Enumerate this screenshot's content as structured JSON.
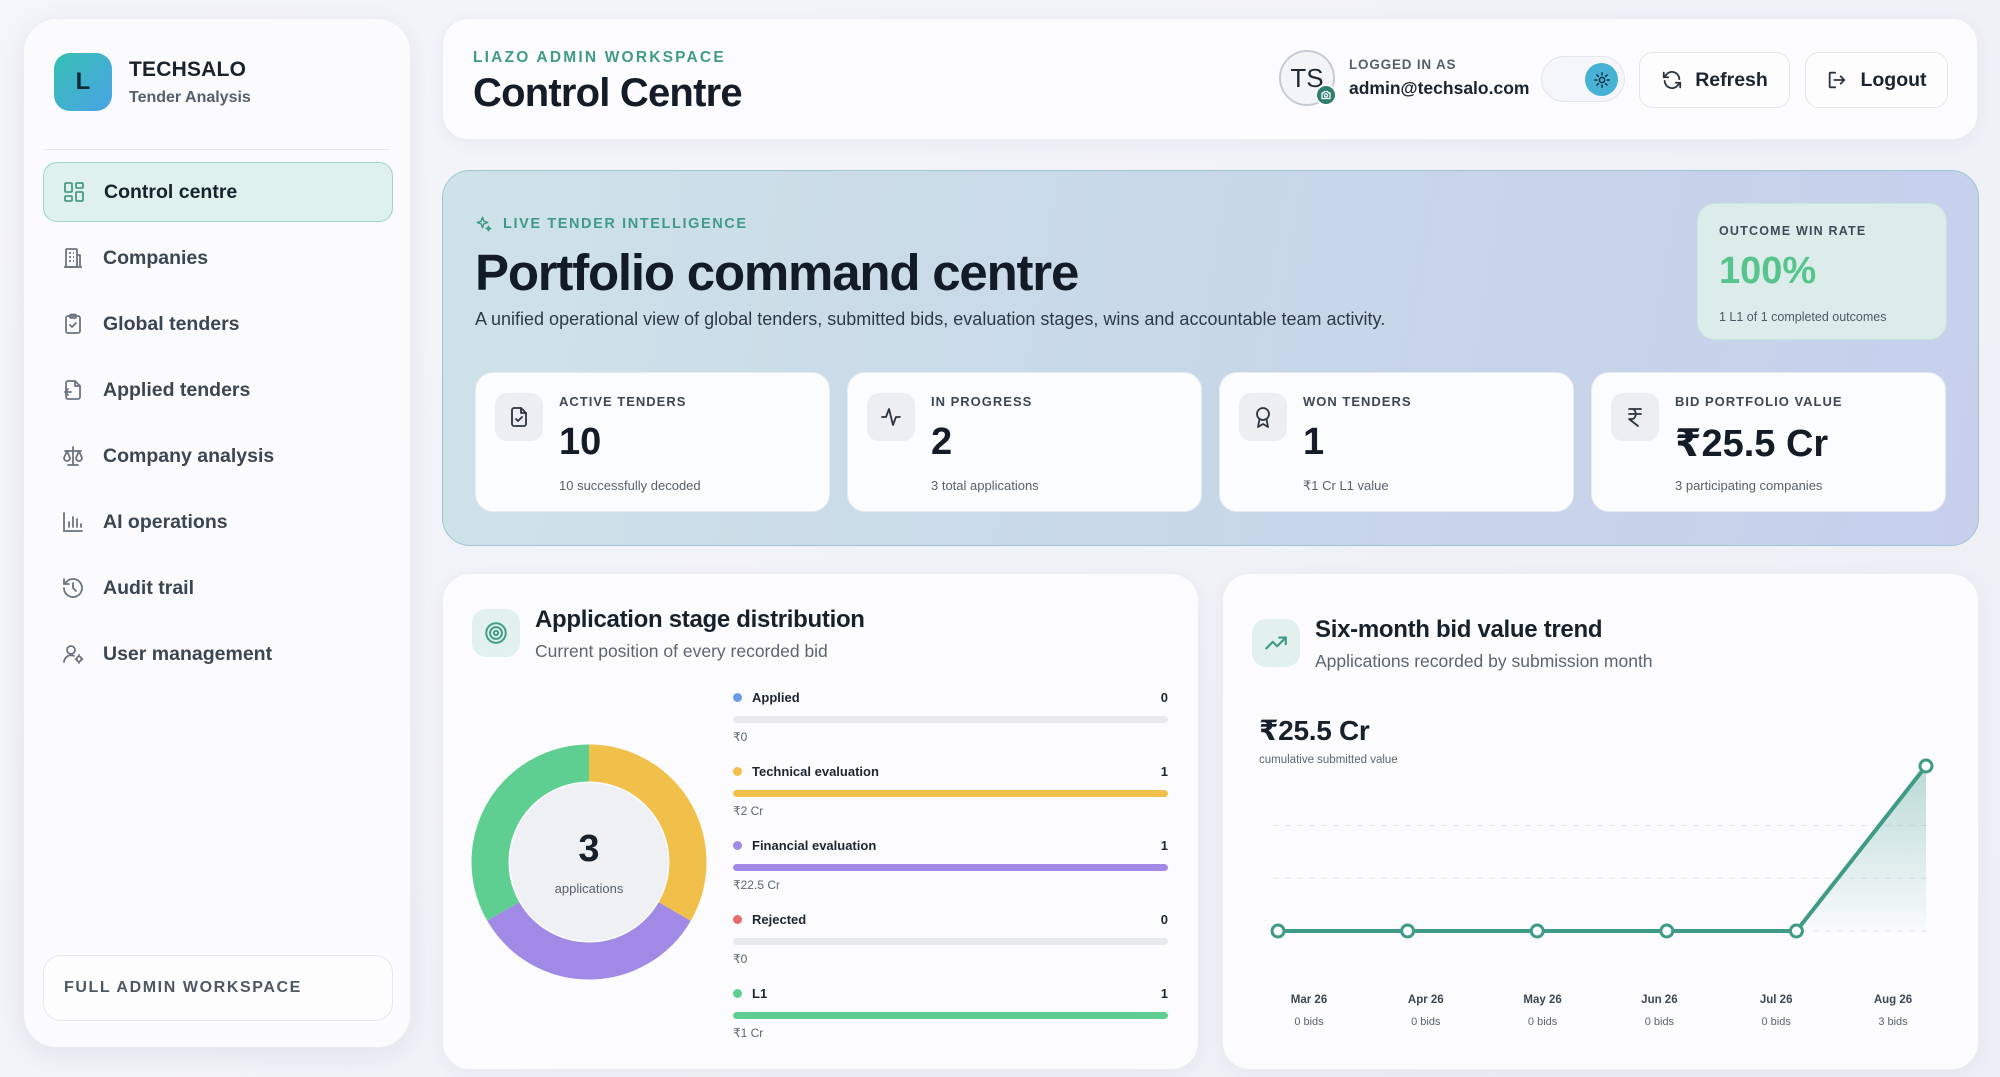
{
  "brand": {
    "logo_letter": "L",
    "name": "TECHSALO",
    "subtitle": "Tender Analysis"
  },
  "nav": [
    {
      "label": "Control centre",
      "icon": "dashboard-icon",
      "active": true
    },
    {
      "label": "Companies",
      "icon": "building-icon"
    },
    {
      "label": "Global tenders",
      "icon": "clipboard-icon"
    },
    {
      "label": "Applied tenders",
      "icon": "file-return-icon"
    },
    {
      "label": "Company analysis",
      "icon": "scale-icon"
    },
    {
      "label": "AI operations",
      "icon": "bar-chart-icon"
    },
    {
      "label": "Audit trail",
      "icon": "history-icon"
    },
    {
      "label": "User management",
      "icon": "user-cog-icon"
    }
  ],
  "sidebar_footer": "FULL ADMIN WORKSPACE",
  "header": {
    "eyebrow": "LIAZO ADMIN WORKSPACE",
    "title": "Control Centre",
    "avatar_initials": "TS",
    "logged_in_caption": "LOGGED IN AS",
    "user_email": "admin@techsalo.com",
    "refresh_label": "Refresh",
    "logout_label": "Logout"
  },
  "hero": {
    "eyebrow": "LIVE TENDER INTELLIGENCE",
    "title": "Portfolio command centre",
    "description": "A unified operational view of global tenders, submitted bids, evaluation stages, wins and accountable team activity.",
    "win_rate": {
      "label": "OUTCOME WIN RATE",
      "value": "100%",
      "note": "1 L1 of 1 completed outcomes"
    },
    "kpis": [
      {
        "label": "ACTIVE TENDERS",
        "value": "10",
        "note": "10 successfully decoded",
        "icon": "file-check-icon"
      },
      {
        "label": "IN PROGRESS",
        "value": "2",
        "note": "3 total applications",
        "icon": "activity-icon"
      },
      {
        "label": "WON TENDERS",
        "value": "1",
        "note": "₹1 Cr L1 value",
        "icon": "award-icon"
      },
      {
        "label": "BID PORTFOLIO VALUE",
        "value": "₹25.5 Cr",
        "note": "3 participating companies",
        "icon": "rupee-icon"
      }
    ]
  },
  "stage_card": {
    "title": "Application stage distribution",
    "subtitle": "Current position of every recorded bid",
    "total": "3",
    "total_label": "applications",
    "stages": [
      {
        "name": "Applied",
        "count": "0",
        "value": "₹0",
        "color": "#6b9be8",
        "fraction": 0
      },
      {
        "name": "Technical evaluation",
        "count": "1",
        "value": "₹2 Cr",
        "color": "#f0c04a",
        "fraction": 1
      },
      {
        "name": "Financial evaluation",
        "count": "1",
        "value": "₹22.5 Cr",
        "color": "#a08ae6",
        "fraction": 1
      },
      {
        "name": "Rejected",
        "count": "0",
        "value": "₹0",
        "color": "#e96a6a",
        "fraction": 0
      },
      {
        "name": "L1",
        "count": "1",
        "value": "₹1 Cr",
        "color": "#5ecf91",
        "fraction": 1
      }
    ]
  },
  "trend_card": {
    "title": "Six-month bid value trend",
    "subtitle": "Applications recorded by submission month",
    "total_value": "₹25.5 Cr",
    "total_caption": "cumulative submitted value"
  },
  "chart_data": {
    "type": "line",
    "categories": [
      "Mar 26",
      "Apr 26",
      "May 26",
      "Jun 26",
      "Jul 26",
      "Aug 26"
    ],
    "bids_labels": [
      "0 bids",
      "0 bids",
      "0 bids",
      "0 bids",
      "0 bids",
      "3 bids"
    ],
    "series": [
      {
        "values": [
          0,
          0,
          0,
          0,
          0,
          25.5
        ]
      }
    ],
    "ylim": [
      0,
      25.5
    ],
    "line_color": "#3f9b88"
  }
}
